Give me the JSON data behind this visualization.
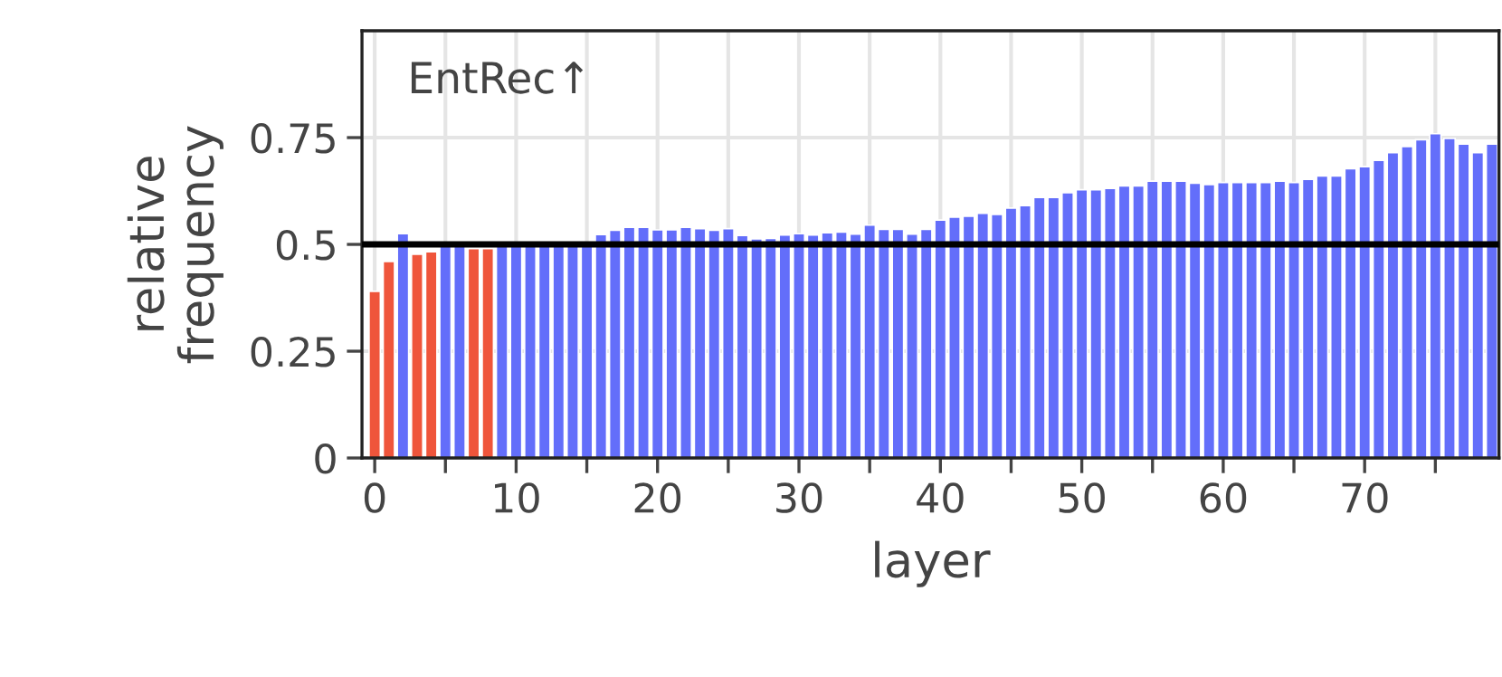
{
  "chart_data": {
    "type": "bar",
    "xlabel": "layer",
    "ylabel": "relative\nfrequency",
    "annotations": [
      "EntRec↑"
    ],
    "x": [
      0,
      1,
      2,
      3,
      4,
      5,
      6,
      7,
      8,
      9,
      10,
      11,
      12,
      13,
      14,
      15,
      16,
      17,
      18,
      19,
      20,
      21,
      22,
      23,
      24,
      25,
      26,
      27,
      28,
      29,
      30,
      31,
      32,
      33,
      34,
      35,
      36,
      37,
      38,
      39,
      40,
      41,
      42,
      43,
      44,
      45,
      46,
      47,
      48,
      49,
      50,
      51,
      52,
      53,
      54,
      55,
      56,
      57,
      58,
      59,
      60,
      61,
      62,
      63,
      64,
      65,
      66,
      67,
      68,
      69,
      70,
      71,
      72,
      73,
      74,
      75,
      76,
      77,
      78,
      79
    ],
    "values": [
      0.39,
      0.46,
      0.525,
      0.477,
      0.483,
      0.5,
      0.5,
      0.49,
      0.49,
      0.5,
      0.505,
      0.505,
      0.5,
      0.5,
      0.5,
      0.5,
      0.523,
      0.533,
      0.54,
      0.54,
      0.534,
      0.534,
      0.54,
      0.537,
      0.533,
      0.537,
      0.521,
      0.513,
      0.514,
      0.522,
      0.525,
      0.522,
      0.527,
      0.529,
      0.524,
      0.545,
      0.535,
      0.535,
      0.524,
      0.535,
      0.557,
      0.564,
      0.566,
      0.573,
      0.57,
      0.585,
      0.591,
      0.61,
      0.61,
      0.621,
      0.628,
      0.628,
      0.631,
      0.637,
      0.637,
      0.648,
      0.648,
      0.648,
      0.643,
      0.64,
      0.645,
      0.645,
      0.645,
      0.645,
      0.648,
      0.645,
      0.652,
      0.66,
      0.66,
      0.677,
      0.682,
      0.697,
      0.715,
      0.729,
      0.745,
      0.759,
      0.748,
      0.735,
      0.715,
      0.735
    ],
    "colors": [
      "#ef553b",
      "#ef553b",
      "#636efa",
      "#ef553b",
      "#ef553b",
      "#636efa",
      "#636efa",
      "#ef553b",
      "#ef553b",
      "#636efa",
      "#636efa",
      "#636efa",
      "#636efa",
      "#636efa",
      "#636efa",
      "#636efa",
      "#636efa",
      "#636efa",
      "#636efa",
      "#636efa",
      "#636efa",
      "#636efa",
      "#636efa",
      "#636efa",
      "#636efa",
      "#636efa",
      "#636efa",
      "#636efa",
      "#636efa",
      "#636efa",
      "#636efa",
      "#636efa",
      "#636efa",
      "#636efa",
      "#636efa",
      "#636efa",
      "#636efa",
      "#636efa",
      "#636efa",
      "#636efa",
      "#636efa",
      "#636efa",
      "#636efa",
      "#636efa",
      "#636efa",
      "#636efa",
      "#636efa",
      "#636efa",
      "#636efa",
      "#636efa",
      "#636efa",
      "#636efa",
      "#636efa",
      "#636efa",
      "#636efa",
      "#636efa",
      "#636efa",
      "#636efa",
      "#636efa",
      "#636efa",
      "#636efa",
      "#636efa",
      "#636efa",
      "#636efa",
      "#636efa",
      "#636efa",
      "#636efa",
      "#636efa",
      "#636efa",
      "#636efa",
      "#636efa",
      "#636efa",
      "#636efa",
      "#636efa",
      "#636efa",
      "#636efa",
      "#636efa",
      "#636efa",
      "#636efa",
      "#636efa"
    ],
    "xlim": [
      -0.9,
      79.5
    ],
    "ylim": [
      0,
      1
    ],
    "xticks": [
      0,
      {
        "value": 5,
        "label": null
      },
      10,
      {
        "value": 15,
        "label": null
      },
      20,
      {
        "value": 25,
        "label": null
      },
      30,
      {
        "value": 35,
        "label": null
      },
      40,
      {
        "value": 45,
        "label": null
      },
      50,
      {
        "value": 55,
        "label": null
      },
      60,
      {
        "value": 65,
        "label": null
      },
      70,
      {
        "value": 75,
        "label": null
      }
    ],
    "yticks": [
      0,
      0.25,
      0.5,
      0.75
    ],
    "ref_lines": [
      {
        "axis": "y",
        "value": 0.5,
        "label": null,
        "color": "#000000",
        "line_style": "solid"
      }
    ],
    "grid": true,
    "legend": false
  }
}
